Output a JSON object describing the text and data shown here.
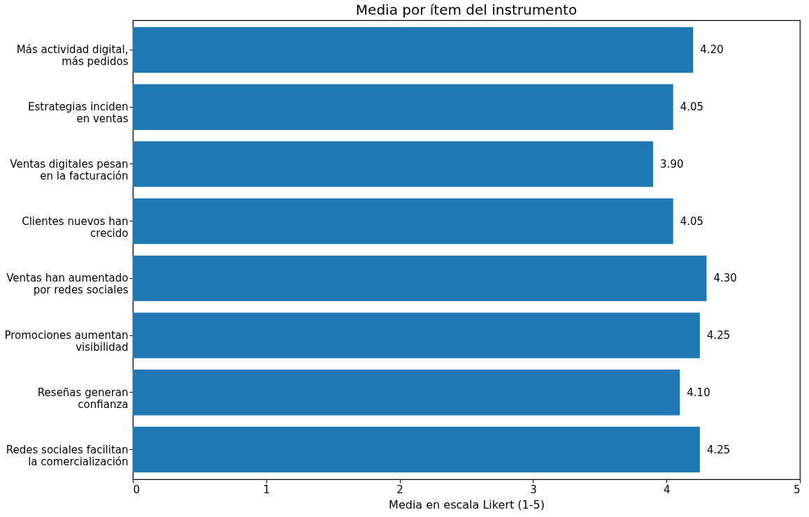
{
  "chart_data": {
    "type": "bar",
    "orientation": "horizontal",
    "title": "Media por ítem del instrumento",
    "xlabel": "Media en escala Likert (1-5)",
    "categories": [
      "Más actividad digital,\nmás pedidos",
      "Estrategias inciden\nen ventas",
      "Ventas digitales pesan\nen la facturación",
      "Clientes nuevos han\ncrecido",
      "Ventas han aumentado\npor redes sociales",
      "Promociones aumentan\nvisibilidad",
      "Reseñas generan\nconfianza",
      "Redes sociales facilitan\nla comercialización"
    ],
    "values": [
      4.2,
      4.05,
      3.9,
      4.05,
      4.3,
      4.25,
      4.1,
      4.25
    ],
    "value_labels": [
      "4.20",
      "4.05",
      "3.90",
      "4.05",
      "4.30",
      "4.25",
      "4.10",
      "4.25"
    ],
    "color": "#1f77b4",
    "xlim": [
      0,
      5
    ],
    "xticks": [
      0,
      1,
      2,
      3,
      4,
      5
    ],
    "grid": false
  }
}
